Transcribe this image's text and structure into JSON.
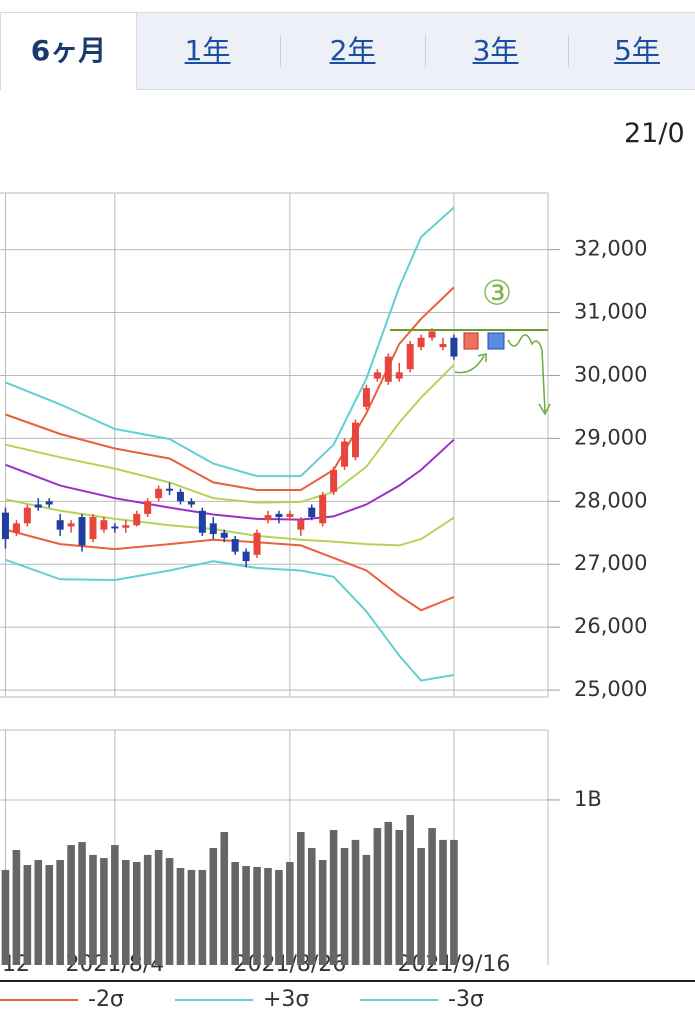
{
  "tabs": [
    "6ヶ月",
    "1年",
    "2年",
    "3年",
    "5年"
  ],
  "date_partial": "21/0",
  "annotation": "③",
  "chart_data": [
    {
      "type": "candlestick",
      "xlim": [
        -0.5,
        49.6
      ],
      "xticks": [
        {
          "value": 0,
          "label": "12"
        },
        {
          "value": 10,
          "label": "2021/8/4"
        },
        {
          "value": 26,
          "label": "2021/8/26"
        },
        {
          "value": 41,
          "label": "2021/9/16"
        }
      ],
      "ylim": [
        24890,
        32900
      ],
      "yticks": [
        {
          "value": 25000,
          "label": "25,000"
        },
        {
          "value": 26000,
          "label": "26,000"
        },
        {
          "value": 27000,
          "label": "27,000"
        },
        {
          "value": 28000,
          "label": "28,000"
        },
        {
          "value": 29000,
          "label": "29,000"
        },
        {
          "value": 30000,
          "label": "30,000"
        },
        {
          "value": 31000,
          "label": "31,000"
        },
        {
          "value": 32000,
          "label": "32,000"
        }
      ],
      "grid": true,
      "up_color": "#e8453c",
      "down_color": "#2040a0",
      "open": [
        27820,
        27500,
        27650,
        27950,
        28000,
        27700,
        27600,
        27750,
        27400,
        27550,
        27600,
        27580,
        27620,
        27800,
        28050,
        28200,
        28150,
        28000,
        27850,
        27650,
        27500,
        27400,
        27200,
        27150,
        27700,
        27800,
        27750,
        27550,
        27900,
        27650,
        28150,
        28550,
        28700,
        29500,
        29950,
        29900,
        29950,
        30100,
        30450,
        30600,
        30450,
        30600
      ],
      "high": [
        27900,
        27700,
        27950,
        28050,
        28050,
        27800,
        27700,
        27800,
        27800,
        27750,
        27650,
        27700,
        27850,
        28050,
        28250,
        28300,
        28200,
        28050,
        27900,
        27750,
        27550,
        27450,
        27250,
        27550,
        27850,
        27850,
        27850,
        27750,
        27950,
        28150,
        28550,
        29000,
        29300,
        29850,
        30100,
        30350,
        30200,
        30550,
        30650,
        30750,
        30600,
        30650
      ],
      "low": [
        27250,
        27450,
        27600,
        27850,
        27900,
        27450,
        27500,
        27200,
        27350,
        27500,
        27500,
        27500,
        27600,
        27750,
        28000,
        28100,
        27950,
        27900,
        27450,
        27400,
        27350,
        27150,
        26950,
        27100,
        27650,
        27650,
        27700,
        27450,
        27700,
        27600,
        28100,
        28500,
        28650,
        29450,
        29900,
        29850,
        29900,
        30050,
        30400,
        30550,
        30400,
        30250
      ],
      "close": [
        27400,
        27650,
        27900,
        27900,
        27950,
        27550,
        27650,
        27300,
        27750,
        27700,
        27580,
        27620,
        27800,
        28000,
        28200,
        28180,
        28000,
        27950,
        27500,
        27480,
        27420,
        27200,
        27050,
        27500,
        27780,
        27750,
        27800,
        27700,
        27750,
        28100,
        28500,
        28950,
        29250,
        29800,
        30050,
        30300,
        30050,
        30500,
        30600,
        30700,
        30500,
        30300
      ],
      "band_x": [
        0,
        5,
        10,
        15,
        19,
        23,
        27,
        30,
        33,
        36,
        38,
        41
      ],
      "series": [
        {
          "color": "#9b30c8",
          "values": [
            28580,
            28250,
            28050,
            27900,
            27790,
            27720,
            27710,
            27760,
            27950,
            28250,
            28500,
            28980
          ]
        },
        {
          "color": "#b5d35a",
          "values": [
            28900,
            28700,
            28520,
            28300,
            28050,
            27980,
            27990,
            28150,
            28550,
            29250,
            29650,
            30170
          ]
        },
        {
          "color": "#b5d35a",
          "values": [
            28030,
            27850,
            27720,
            27620,
            27560,
            27450,
            27390,
            27360,
            27320,
            27300,
            27400,
            27740
          ]
        },
        {
          "color": "#e8603c",
          "values": [
            29380,
            29070,
            28840,
            28680,
            28300,
            28180,
            28180,
            28500,
            29400,
            30500,
            30900,
            31400
          ]
        },
        {
          "name": "-2σ",
          "color": "#e8603c",
          "values": [
            27550,
            27320,
            27240,
            27320,
            27390,
            27350,
            27300,
            27100,
            26900,
            26500,
            26270,
            26480
          ]
        },
        {
          "name": "+3σ",
          "color": "#62cfd3",
          "values": [
            29890,
            29540,
            29150,
            28990,
            28600,
            28400,
            28400,
            28900,
            29950,
            31400,
            32200,
            32670
          ]
        },
        {
          "name": "-3σ",
          "color": "#62cfd3",
          "values": [
            27070,
            26760,
            26750,
            26900,
            27050,
            26940,
            26900,
            26800,
            26250,
            25550,
            25150,
            25240
          ]
        }
      ]
    },
    {
      "type": "bar",
      "ylim": [
        0,
        1424000000
      ],
      "yticks": [
        {
          "value": 1000000000,
          "label": "1B"
        }
      ],
      "color": "#666666",
      "values": [
        576000000,
        697000000,
        606000000,
        636000000,
        606000000,
        636000000,
        727000000,
        745000000,
        667000000,
        648000000,
        727000000,
        636000000,
        624000000,
        667000000,
        697000000,
        648000000,
        588000000,
        576000000,
        576000000,
        709000000,
        806000000,
        624000000,
        600000000,
        594000000,
        588000000,
        576000000,
        624000000,
        806000000,
        709000000,
        636000000,
        818000000,
        709000000,
        758000000,
        667000000,
        830000000,
        867000000,
        818000000,
        909000000,
        709000000,
        830000000,
        758000000,
        758000000
      ]
    }
  ]
}
